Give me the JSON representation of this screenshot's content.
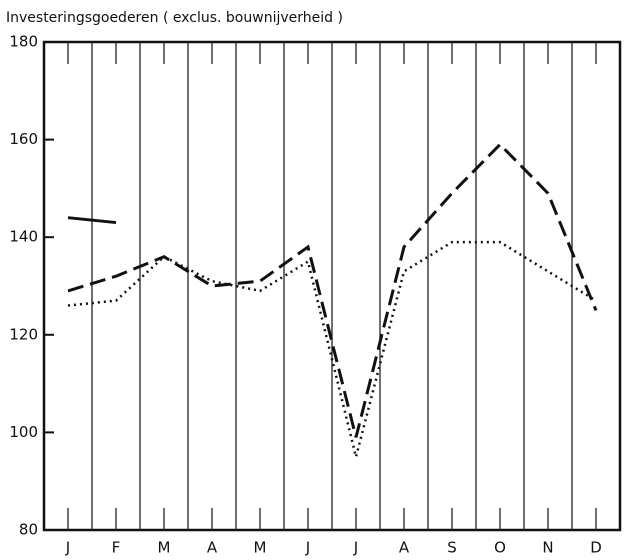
{
  "chart_data": {
    "type": "line",
    "title": "Investeringsgoederen ( exclus. bouwnijverheid )",
    "categories": [
      "J",
      "F",
      "M",
      "A",
      "M",
      "J",
      "J",
      "A",
      "S",
      "O",
      "N",
      "D"
    ],
    "series": [
      {
        "color": "#111111",
        "dash": "solid",
        "values": [
          144,
          143,
          null,
          null,
          null,
          null,
          null,
          null,
          null,
          null,
          null,
          null
        ]
      },
      {
        "color": "#111111",
        "dash": "dashed",
        "values": [
          129,
          132,
          136,
          130,
          131,
          138,
          99,
          138,
          149,
          159,
          149,
          125
        ]
      },
      {
        "color": "#111111",
        "dash": "dotted",
        "values": [
          126,
          127,
          136,
          131,
          129,
          135,
          95,
          133,
          139,
          139,
          133,
          127
        ]
      }
    ],
    "ylim": [
      80,
      180
    ],
    "yticks": [
      80,
      100,
      120,
      140,
      160,
      180
    ],
    "grid": true
  }
}
